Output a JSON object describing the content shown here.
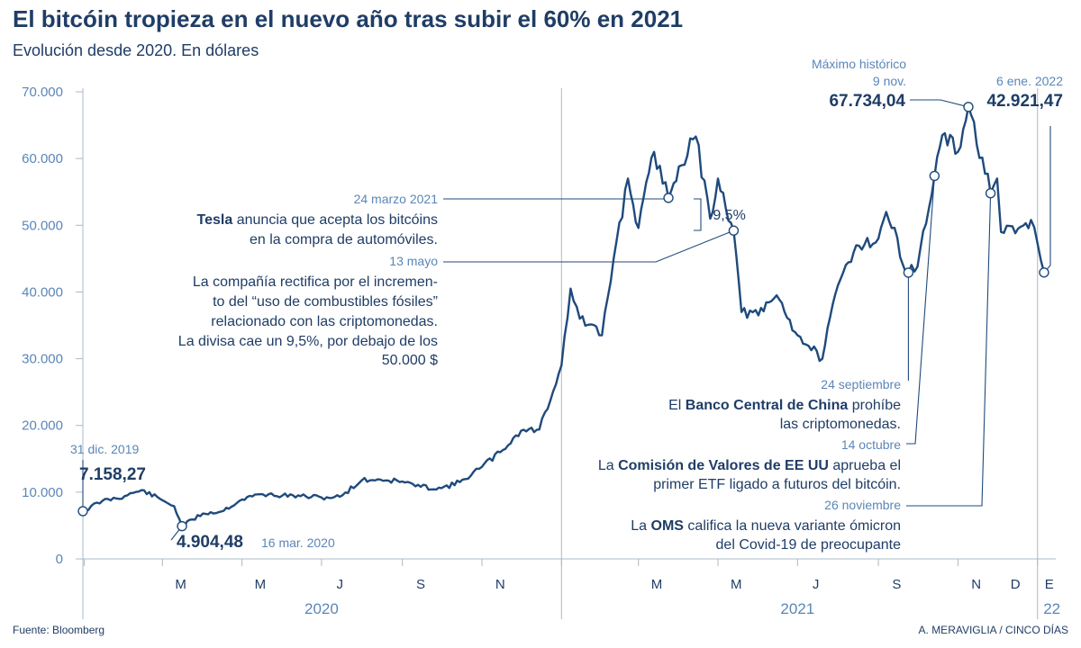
{
  "chart_data": {
    "type": "line",
    "title": "El bitcóin tropieza en el nuevo año tras subir el 60% en 2021",
    "subtitle": "Evolución desde 2020. En dólares",
    "xlabel": "",
    "ylabel": "",
    "ylim": [
      0,
      70000
    ],
    "y_ticks": [
      "0",
      "10.000",
      "20.000",
      "30.000",
      "40.000",
      "50.000",
      "60.000",
      "70.000"
    ],
    "x_month_labels": [
      "M",
      "M",
      "J",
      "S",
      "N",
      "M",
      "M",
      "J",
      "S",
      "N",
      "D",
      "E"
    ],
    "x_year_labels": [
      "2020",
      "2021",
      "22"
    ],
    "grid": false,
    "series": [
      {
        "x": [
          "2019-12-31",
          "2020-01-15",
          "2020-02-01",
          "2020-02-14",
          "2020-03-01",
          "2020-03-10",
          "2020-03-16",
          "2020-04-01",
          "2020-04-15",
          "2020-05-01",
          "2020-05-15",
          "2020-06-01",
          "2020-06-15",
          "2020-07-01",
          "2020-07-15",
          "2020-08-01",
          "2020-08-15",
          "2020-09-01",
          "2020-09-15",
          "2020-10-01",
          "2020-10-15",
          "2020-11-01",
          "2020-11-15",
          "2020-12-01",
          "2020-12-15",
          "2021-01-01",
          "2021-01-08",
          "2021-01-15",
          "2021-02-01",
          "2021-02-10",
          "2021-02-21",
          "2021-03-01",
          "2021-03-13",
          "2021-03-24",
          "2021-04-01",
          "2021-04-14",
          "2021-04-25",
          "2021-05-01",
          "2021-05-13",
          "2021-05-19",
          "2021-06-01",
          "2021-06-15",
          "2021-07-01",
          "2021-07-20",
          "2021-08-01",
          "2021-08-15",
          "2021-09-01",
          "2021-09-07",
          "2021-09-24",
          "2021-10-01",
          "2021-10-14",
          "2021-10-20",
          "2021-11-01",
          "2021-11-09",
          "2021-11-26",
          "2021-12-01",
          "2021-12-04",
          "2021-12-15",
          "2021-12-27",
          "2022-01-01",
          "2022-01-06"
        ],
        "values": [
          7158.27,
          8700,
          9400,
          10300,
          8800,
          7900,
          4904.48,
          6800,
          7100,
          8900,
          9700,
          9500,
          9400,
          9200,
          9300,
          11800,
          11900,
          11600,
          10800,
          10600,
          11500,
          13800,
          16000,
          19200,
          19400,
          29000,
          40500,
          36000,
          33500,
          45000,
          57000,
          49600,
          61000,
          54100,
          58800,
          63300,
          51000,
          57000,
          49200,
          37000,
          36500,
          39500,
          33500,
          30000,
          41000,
          47000,
          48000,
          52000,
          42900,
          43800,
          57400,
          63500,
          61000,
          67734.04,
          54800,
          57000,
          49000,
          48800,
          50800,
          47300,
          42921.47
        ]
      }
    ],
    "annotations": {
      "start": {
        "date": "31 dic. 2019",
        "value": "7.158,27"
      },
      "low": {
        "value": "4.904,48",
        "date": "16 mar. 2020"
      },
      "max": {
        "label": "Máximo histórico",
        "date": "9 nov.",
        "value": "67.734,04"
      },
      "last": {
        "date": "6 ene. 2022",
        "value": "42.921,47"
      },
      "tesla": {
        "date": "24 marzo 2021",
        "bold": "Tesla",
        "line1_rest": " anuncia que acepta los bitcóins",
        "line2": "en la compra de automóviles."
      },
      "drop": {
        "label": "-9,5%"
      },
      "rectify": {
        "date": "13 mayo",
        "lines": [
          "La compañía rectifica por el incremen-",
          "to del “uso de combustibles fósiles”",
          "relacionado con las criptomonedas.",
          "La divisa cae un 9,5%, por debajo de los",
          "50.000 $"
        ]
      },
      "china": {
        "date": "24 septiembre",
        "pre": "El ",
        "bold": "Banco Central de China",
        "post": " prohíbe",
        "line2": "las criptomonedas."
      },
      "sec": {
        "date": "14 octubre",
        "pre": "La ",
        "bold": "Comisión de Valores de EE UU",
        "post": " aprueba el",
        "line2": "primer ETF ligado a futuros del bitcóin."
      },
      "oms": {
        "date": "26 noviembre",
        "pre": "La ",
        "bold": "OMS",
        "post": " califica la nueva variante ómicron",
        "line2": "del Covid-19 de preocupante"
      }
    },
    "source": "Fuente: Bloomberg",
    "credit": "A. MERAVIGLIA / CINCO DÍAS"
  },
  "colors": {
    "line": "#1f4a7c",
    "text": "#1f3d66",
    "accent": "#5b86b8",
    "axis": "#aab8c8"
  }
}
